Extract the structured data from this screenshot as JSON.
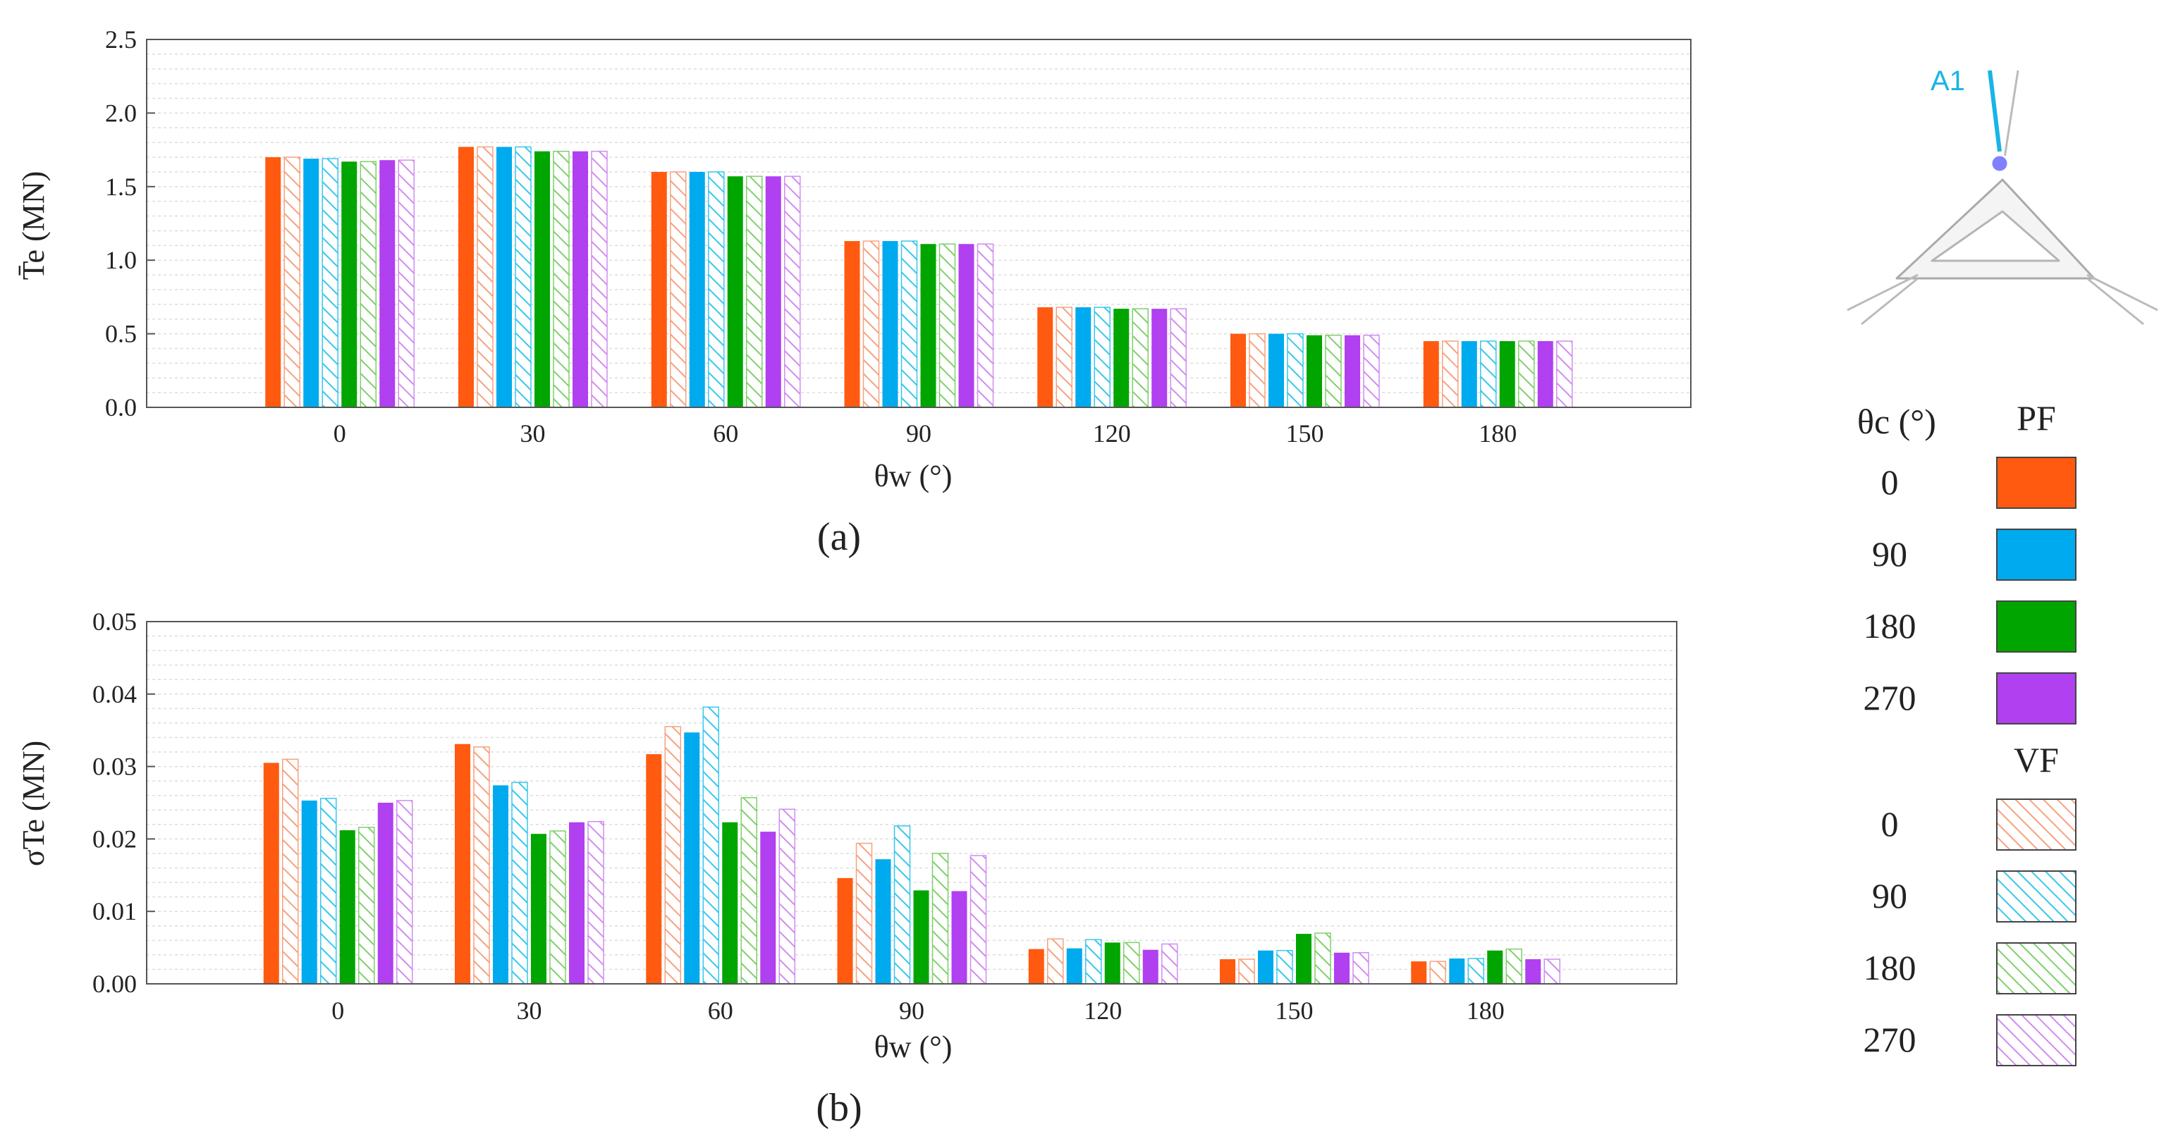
{
  "chart_data": [
    {
      "id": "a",
      "type": "bar",
      "panel_label": "(a)",
      "ylabel": "T̄e (MN)",
      "xlabel": "θw (°)",
      "ylim": [
        0,
        2.5
      ],
      "yticks": [
        "0.0",
        "0.5",
        "1.0",
        "1.5",
        "2.0",
        "2.5"
      ],
      "categories": [
        "0",
        "30",
        "60",
        "90",
        "120",
        "150",
        "180"
      ],
      "series": [
        {
          "name": "PF 0",
          "values": [
            1.7,
            1.77,
            1.6,
            1.13,
            0.68,
            0.5,
            0.45
          ]
        },
        {
          "name": "VF 0",
          "values": [
            1.7,
            1.77,
            1.6,
            1.13,
            0.68,
            0.5,
            0.45
          ]
        },
        {
          "name": "PF 90",
          "values": [
            1.69,
            1.77,
            1.6,
            1.13,
            0.68,
            0.5,
            0.45
          ]
        },
        {
          "name": "VF 90",
          "values": [
            1.69,
            1.77,
            1.6,
            1.13,
            0.68,
            0.5,
            0.45
          ]
        },
        {
          "name": "PF 180",
          "values": [
            1.67,
            1.74,
            1.57,
            1.11,
            0.67,
            0.49,
            0.45
          ]
        },
        {
          "name": "VF 180",
          "values": [
            1.67,
            1.74,
            1.57,
            1.11,
            0.67,
            0.49,
            0.45
          ]
        },
        {
          "name": "PF 270",
          "values": [
            1.68,
            1.74,
            1.57,
            1.11,
            0.67,
            0.49,
            0.45
          ]
        },
        {
          "name": "VF 270",
          "values": [
            1.68,
            1.74,
            1.57,
            1.11,
            0.67,
            0.49,
            0.45
          ]
        }
      ],
      "grid": true
    },
    {
      "id": "b",
      "type": "bar",
      "panel_label": "(b)",
      "ylabel": "σTe (MN)",
      "xlabel": "θw (°)",
      "ylim": [
        0,
        0.05
      ],
      "yticks": [
        "0.00",
        "0.01",
        "0.02",
        "0.03",
        "0.04",
        "0.05"
      ],
      "categories": [
        "0",
        "30",
        "60",
        "90",
        "120",
        "150",
        "180"
      ],
      "series": [
        {
          "name": "PF 0",
          "values": [
            0.0305,
            0.0331,
            0.0317,
            0.0146,
            0.0048,
            0.0034,
            0.0031
          ]
        },
        {
          "name": "VF 0",
          "values": [
            0.031,
            0.0327,
            0.0355,
            0.0194,
            0.0062,
            0.0034,
            0.0031
          ]
        },
        {
          "name": "PF 90",
          "values": [
            0.0253,
            0.0274,
            0.0347,
            0.0172,
            0.0049,
            0.0046,
            0.0035
          ]
        },
        {
          "name": "VF 90",
          "values": [
            0.0256,
            0.0278,
            0.0382,
            0.0218,
            0.0061,
            0.0046,
            0.0035
          ]
        },
        {
          "name": "PF 180",
          "values": [
            0.0212,
            0.0207,
            0.0223,
            0.0129,
            0.0057,
            0.0069,
            0.0046
          ]
        },
        {
          "name": "VF 180",
          "values": [
            0.0216,
            0.0211,
            0.0257,
            0.018,
            0.0057,
            0.007,
            0.0048
          ]
        },
        {
          "name": "PF 270",
          "values": [
            0.025,
            0.0223,
            0.021,
            0.0128,
            0.0047,
            0.0043,
            0.0034
          ]
        },
        {
          "name": "VF 270",
          "values": [
            0.0253,
            0.0224,
            0.0241,
            0.0177,
            0.0055,
            0.0043,
            0.0034
          ]
        }
      ],
      "grid": true
    }
  ],
  "legend": {
    "header_theta": "θc (°)",
    "header_pf": "PF",
    "header_vf": "VF",
    "pf_items": [
      {
        "label": "0",
        "color": "#ff5a10"
      },
      {
        "label": "90",
        "color": "#00aaee"
      },
      {
        "label": "180",
        "color": "#00a500"
      },
      {
        "label": "270",
        "color": "#b040f0"
      }
    ],
    "vf_items": [
      {
        "label": "0",
        "color": "#f7a17f"
      },
      {
        "label": "90",
        "color": "#38c7ee"
      },
      {
        "label": "180",
        "color": "#7fd06a"
      },
      {
        "label": "270",
        "color": "#d18cf2"
      }
    ]
  },
  "inset": {
    "label": "A1",
    "line_color": "#19b4e6"
  }
}
